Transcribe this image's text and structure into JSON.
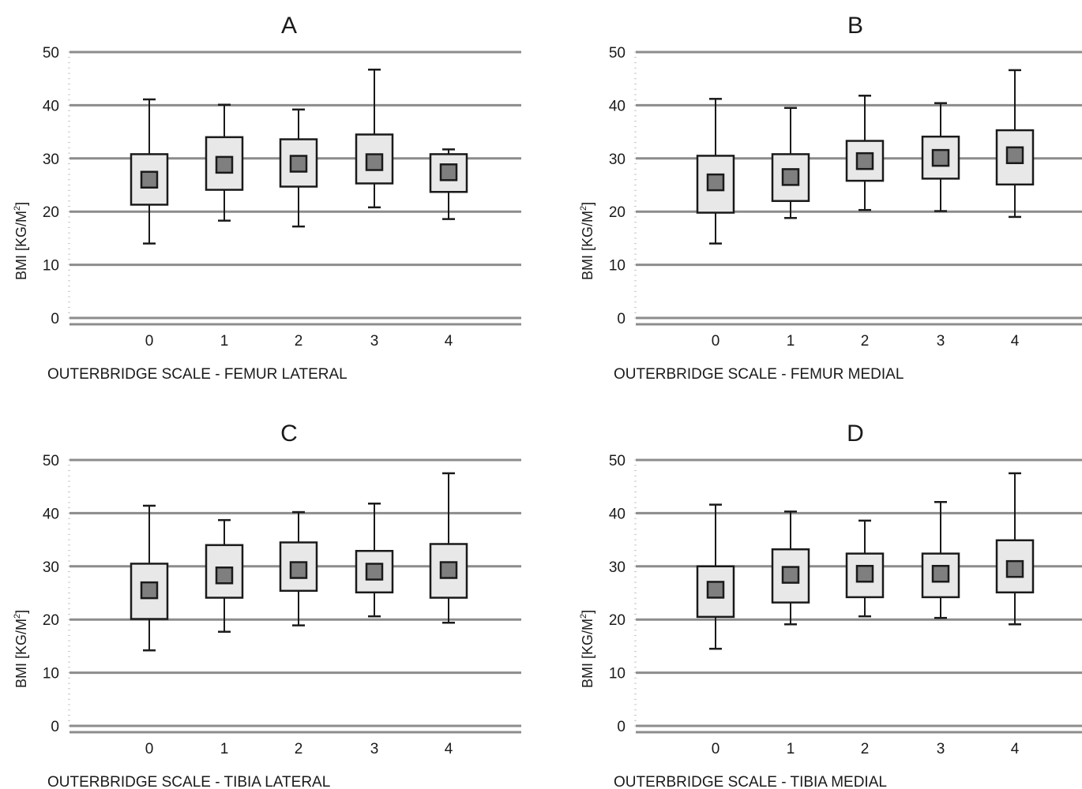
{
  "chart_data": [
    {
      "panel": "A",
      "type": "box",
      "title": "A",
      "xlabel": "OUTERBRIDGE SCALE - FEMUR LATERAL",
      "ylabel": "BMI [KG/M",
      "ylabel_sup": "2",
      "ylabel_close": "]",
      "ylim": [
        0,
        50
      ],
      "yticks": [
        0,
        10,
        20,
        30,
        40,
        50
      ],
      "categories": [
        "0",
        "1",
        "2",
        "3",
        "4"
      ],
      "boxes": [
        {
          "category": "0",
          "whisker_low": 14,
          "q1": 21.3,
          "median": 26,
          "q3": 30.8,
          "whisker_high": 41.1
        },
        {
          "category": "1",
          "whisker_low": 18.3,
          "q1": 24.1,
          "median": 28.8,
          "q3": 34,
          "whisker_high": 40.1
        },
        {
          "category": "2",
          "whisker_low": 17.2,
          "q1": 24.7,
          "median": 29,
          "q3": 33.6,
          "whisker_high": 39.2
        },
        {
          "category": "3",
          "whisker_low": 20.8,
          "q1": 25.3,
          "median": 29.3,
          "q3": 34.5,
          "whisker_high": 46.7
        },
        {
          "category": "4",
          "whisker_low": 18.6,
          "q1": 23.7,
          "median": 27.4,
          "q3": 30.8,
          "whisker_high": 31.7
        }
      ]
    },
    {
      "panel": "B",
      "type": "box",
      "title": "B",
      "xlabel": "OUTERBRIDGE SCALE - FEMUR MEDIAL",
      "ylabel": "BMI [KG/M",
      "ylabel_sup": "2",
      "ylabel_close": "]",
      "ylim": [
        0,
        50
      ],
      "yticks": [
        0,
        10,
        20,
        30,
        40,
        50
      ],
      "categories": [
        "0",
        "1",
        "2",
        "3",
        "4"
      ],
      "boxes": [
        {
          "category": "0",
          "whisker_low": 14,
          "q1": 19.8,
          "median": 25.5,
          "q3": 30.5,
          "whisker_high": 41.2
        },
        {
          "category": "1",
          "whisker_low": 18.8,
          "q1": 22,
          "median": 26.5,
          "q3": 30.8,
          "whisker_high": 39.5
        },
        {
          "category": "2",
          "whisker_low": 20.3,
          "q1": 25.8,
          "median": 29.5,
          "q3": 33.3,
          "whisker_high": 41.8
        },
        {
          "category": "3",
          "whisker_low": 20.1,
          "q1": 26.2,
          "median": 30.1,
          "q3": 34.1,
          "whisker_high": 40.4
        },
        {
          "category": "4",
          "whisker_low": 19,
          "q1": 25.1,
          "median": 30.6,
          "q3": 35.3,
          "whisker_high": 46.6
        }
      ]
    },
    {
      "panel": "C",
      "type": "box",
      "title": "C",
      "xlabel": "OUTERBRIDGE SCALE - TIBIA LATERAL",
      "ylabel": "BMI [KG/M",
      "ylabel_sup": "2",
      "ylabel_close": "]",
      "ylim": [
        0,
        50
      ],
      "yticks": [
        0,
        10,
        20,
        30,
        40,
        50
      ],
      "categories": [
        "0",
        "1",
        "2",
        "3",
        "4"
      ],
      "boxes": [
        {
          "category": "0",
          "whisker_low": 14.2,
          "q1": 20.1,
          "median": 25.5,
          "q3": 30.5,
          "whisker_high": 41.4
        },
        {
          "category": "1",
          "whisker_low": 17.7,
          "q1": 24.1,
          "median": 28.3,
          "q3": 34,
          "whisker_high": 38.7
        },
        {
          "category": "2",
          "whisker_low": 18.9,
          "q1": 25.4,
          "median": 29.3,
          "q3": 34.5,
          "whisker_high": 40.2
        },
        {
          "category": "3",
          "whisker_low": 20.6,
          "q1": 25.1,
          "median": 29,
          "q3": 32.9,
          "whisker_high": 41.8
        },
        {
          "category": "4",
          "whisker_low": 19.4,
          "q1": 24.1,
          "median": 29.3,
          "q3": 34.2,
          "whisker_high": 47.5
        }
      ]
    },
    {
      "panel": "D",
      "type": "box",
      "title": "D",
      "xlabel": "OUTERBRIDGE SCALE - TIBIA MEDIAL",
      "ylabel": "BMI [KG/M",
      "ylabel_sup": "2",
      "ylabel_close": "]",
      "ylim": [
        0,
        50
      ],
      "yticks": [
        0,
        10,
        20,
        30,
        40,
        50
      ],
      "categories": [
        "0",
        "1",
        "2",
        "3",
        "4"
      ],
      "boxes": [
        {
          "category": "0",
          "whisker_low": 14.5,
          "q1": 20.5,
          "median": 25.6,
          "q3": 30,
          "whisker_high": 41.6
        },
        {
          "category": "1",
          "whisker_low": 19.1,
          "q1": 23.2,
          "median": 28.4,
          "q3": 33.2,
          "whisker_high": 40.3
        },
        {
          "category": "2",
          "whisker_low": 20.6,
          "q1": 24.2,
          "median": 28.6,
          "q3": 32.4,
          "whisker_high": 38.6
        },
        {
          "category": "3",
          "whisker_low": 20.3,
          "q1": 24.2,
          "median": 28.6,
          "q3": 32.4,
          "whisker_high": 42.1
        },
        {
          "category": "4",
          "whisker_low": 19.1,
          "q1": 25.1,
          "median": 29.5,
          "q3": 34.9,
          "whisker_high": 47.5
        }
      ]
    }
  ],
  "colors": {
    "gridline": "#8c8c8c",
    "box_fill": "#e8e8e8",
    "box_stroke": "#1a1a1a",
    "median_fill": "#7f7f7f",
    "whisker": "#1a1a1a",
    "minor_ticks": "#c8c8c8",
    "text": "#1a1a1a"
  }
}
